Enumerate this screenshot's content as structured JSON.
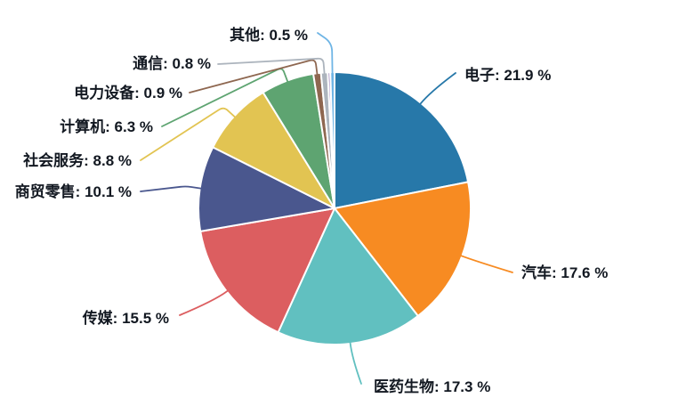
{
  "chart_data": {
    "type": "pie",
    "title": "",
    "legend_position": "none",
    "background": "#ffffff",
    "label_color": "#121821",
    "label_format": "{name}: {value} %",
    "center": [
      376,
      234
    ],
    "radius": 153,
    "start_angle_deg": 0,
    "clockwise": true,
    "slices": [
      {
        "name": "电子",
        "value": 21.9,
        "color": "#2778A9",
        "label_pos": [
          522,
          90
        ],
        "align": "start",
        "line_end": [
          512,
          82
        ],
        "line_shape": "curve"
      },
      {
        "name": "汽车",
        "value": 17.6,
        "color": "#F78B22",
        "label_pos": [
          586,
          312
        ],
        "align": "start",
        "line_end": [
          576,
          306
        ],
        "line_shape": "curve"
      },
      {
        "name": "医药生物",
        "value": 17.3,
        "color": "#61C0C0",
        "label_pos": [
          420,
          440
        ],
        "align": "start",
        "line_end": [
          406,
          431
        ],
        "line_shape": "curve"
      },
      {
        "name": "传媒",
        "value": 15.5,
        "color": "#DC5E60",
        "label_pos": [
          190,
          363
        ],
        "align": "end",
        "line_end": [
          202,
          354
        ],
        "line_shape": "curve"
      },
      {
        "name": "商贸零售",
        "value": 10.1,
        "color": "#4A578E",
        "label_pos": [
          148,
          221
        ],
        "align": "end",
        "line_end": [
          158,
          215
        ],
        "line_shape": "bend"
      },
      {
        "name": "社会服务",
        "value": 8.8,
        "color": "#E2C452",
        "label_pos": [
          148,
          186
        ],
        "align": "end",
        "line_end": [
          158,
          180
        ],
        "line_shape": "bend"
      },
      {
        "name": "计算机",
        "value": 6.3,
        "color": "#5EA471",
        "label_pos": [
          172,
          148
        ],
        "align": "end",
        "line_end": [
          182,
          142
        ],
        "line_shape": "bend"
      },
      {
        "name": "电力设备",
        "value": 0.9,
        "color": "#8E6750",
        "label_pos": [
          205,
          110
        ],
        "align": "end",
        "line_end": [
          213,
          104
        ],
        "line_shape": "bend"
      },
      {
        "name": "通信",
        "value": 0.8,
        "color": "#ACB4BD",
        "label_pos": [
          237,
          77
        ],
        "align": "end",
        "line_end": [
          245,
          72
        ],
        "line_shape": "bend"
      },
      {
        "name": "",
        "value": 0.3,
        "color": "#9678B4"
      },
      {
        "name": "其他",
        "value": 0.5,
        "color": "#6FB5E5",
        "label_pos": [
          346,
          45
        ],
        "align": "end",
        "line_end": [
          357,
          37
        ],
        "line_shape": "bend",
        "bend_ext": 33,
        "corner_r": 10
      }
    ]
  }
}
